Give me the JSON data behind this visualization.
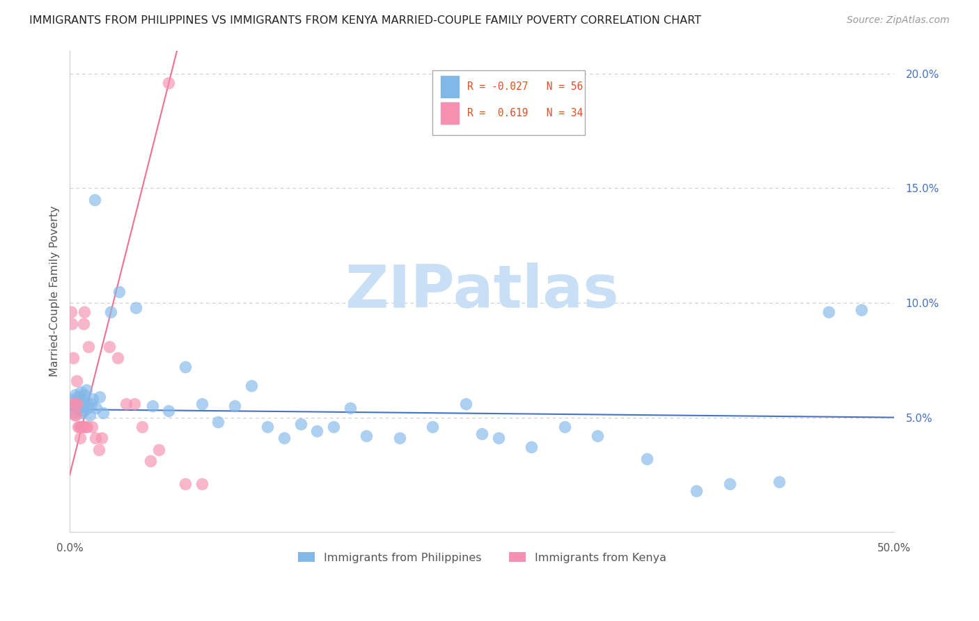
{
  "title": "IMMIGRANTS FROM PHILIPPINES VS IMMIGRANTS FROM KENYA MARRIED-COUPLE FAMILY POVERTY CORRELATION CHART",
  "source": "Source: ZipAtlas.com",
  "ylabel": "Married-Couple Family Poverty",
  "xmin": 0.0,
  "xmax": 50.0,
  "ymin": 0.0,
  "ymax": 21.0,
  "yticks": [
    5.0,
    10.0,
    15.0,
    20.0
  ],
  "philippines_R": -0.027,
  "philippines_N": 56,
  "kenya_R": 0.619,
  "kenya_N": 34,
  "philippines_color": "#82B8E8",
  "kenya_color": "#F590B0",
  "philippines_line_color": "#4472C4",
  "kenya_line_color": "#F07090",
  "watermark_color": "#C8DFF5",
  "phil_x": [
    0.2,
    0.25,
    0.3,
    0.35,
    0.4,
    0.45,
    0.5,
    0.55,
    0.6,
    0.65,
    0.7,
    0.75,
    0.8,
    0.85,
    0.9,
    0.95,
    1.0,
    1.1,
    1.2,
    1.3,
    1.4,
    1.5,
    1.6,
    1.8,
    2.0,
    2.5,
    3.0,
    4.0,
    5.0,
    6.0,
    7.0,
    8.0,
    9.0,
    10.0,
    11.0,
    12.0,
    13.0,
    14.0,
    15.0,
    16.0,
    17.0,
    18.0,
    20.0,
    22.0,
    24.0,
    25.0,
    26.0,
    28.0,
    30.0,
    32.0,
    35.0,
    38.0,
    40.0,
    43.0,
    46.0,
    48.0
  ],
  "phil_y": [
    5.2,
    5.8,
    5.5,
    6.0,
    5.3,
    5.7,
    5.9,
    5.4,
    5.6,
    6.1,
    5.8,
    5.2,
    5.5,
    5.3,
    6.0,
    5.7,
    6.2,
    5.4,
    5.1,
    5.6,
    5.8,
    14.5,
    5.4,
    5.9,
    5.2,
    9.6,
    10.5,
    9.8,
    5.5,
    5.3,
    7.2,
    5.6,
    4.8,
    5.5,
    6.4,
    4.6,
    4.1,
    4.7,
    4.4,
    4.6,
    5.4,
    4.2,
    4.1,
    4.6,
    5.6,
    4.3,
    4.1,
    3.7,
    4.6,
    4.2,
    3.2,
    1.8,
    2.1,
    2.2,
    9.6,
    9.7
  ],
  "kenya_x": [
    0.08,
    0.12,
    0.18,
    0.22,
    0.28,
    0.32,
    0.38,
    0.42,
    0.48,
    0.52,
    0.58,
    0.62,
    0.68,
    0.72,
    0.78,
    0.82,
    0.88,
    0.95,
    1.05,
    1.15,
    1.35,
    1.55,
    1.75,
    1.95,
    2.4,
    2.9,
    3.4,
    3.9,
    4.4,
    4.9,
    5.4,
    6.0,
    7.0,
    8.0
  ],
  "kenya_y": [
    9.6,
    9.1,
    5.6,
    7.6,
    5.1,
    5.6,
    5.1,
    6.6,
    5.6,
    4.6,
    4.6,
    4.1,
    4.6,
    4.6,
    4.6,
    9.1,
    9.6,
    4.6,
    4.6,
    8.1,
    4.6,
    4.1,
    3.6,
    4.1,
    8.1,
    7.6,
    5.6,
    5.6,
    4.6,
    3.1,
    3.6,
    19.6,
    2.1,
    2.1
  ],
  "kenya_line_x0": 0.0,
  "kenya_line_y0": 2.5,
  "kenya_line_x1": 6.5,
  "kenya_line_y1": 21.0,
  "phil_line_x0": 0.0,
  "phil_line_y0": 5.35,
  "phil_line_x1": 50.0,
  "phil_line_y1": 5.0
}
